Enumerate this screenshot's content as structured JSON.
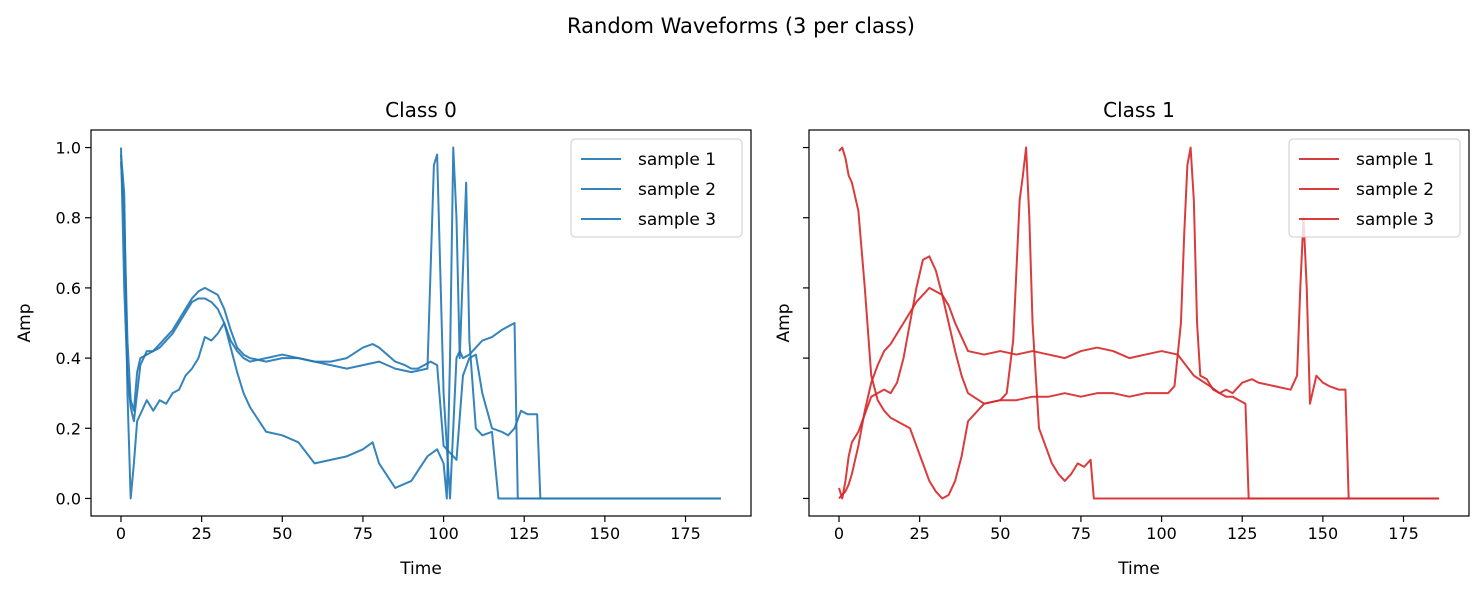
{
  "figure": {
    "suptitle": "Random Waveforms (3 per class)"
  },
  "chart_data": [
    {
      "type": "line",
      "title": "Class 0",
      "xlabel": "Time",
      "ylabel": "Amp",
      "xlim": [
        -9.3,
        195.3
      ],
      "ylim": [
        -0.05,
        1.05
      ],
      "xticks": [
        0,
        25,
        50,
        75,
        100,
        125,
        150,
        175
      ],
      "yticks": [
        0.0,
        0.2,
        0.4,
        0.6,
        0.8,
        1.0
      ],
      "ytick_labels": [
        "0.0",
        "0.2",
        "0.4",
        "0.6",
        "0.8",
        "1.0"
      ],
      "show_ytick_labels": true,
      "grid": false,
      "legend_position": "top-right",
      "color": "#1f77b4",
      "series": [
        {
          "name": "sample 1",
          "x": [
            0,
            1,
            2,
            3,
            4,
            5,
            6,
            8,
            10,
            12,
            14,
            16,
            18,
            20,
            22,
            24,
            26,
            28,
            30,
            32,
            34,
            36,
            38,
            40,
            45,
            50,
            55,
            60,
            65,
            70,
            75,
            80,
            85,
            90,
            95,
            97,
            98,
            100,
            102,
            103,
            104,
            105,
            106,
            108,
            110,
            112,
            115,
            118,
            120,
            122,
            123,
            124,
            186
          ],
          "y": [
            1.0,
            0.6,
            0.35,
            0.26,
            0.22,
            0.3,
            0.38,
            0.42,
            0.42,
            0.43,
            0.45,
            0.47,
            0.5,
            0.53,
            0.56,
            0.57,
            0.57,
            0.56,
            0.54,
            0.5,
            0.45,
            0.42,
            0.4,
            0.39,
            0.4,
            0.41,
            0.4,
            0.39,
            0.38,
            0.37,
            0.38,
            0.39,
            0.37,
            0.36,
            0.37,
            0.95,
            0.98,
            0.3,
            0.0,
            0.2,
            0.4,
            0.42,
            0.4,
            0.41,
            0.43,
            0.45,
            0.46,
            0.48,
            0.49,
            0.5,
            0.0,
            0.0,
            0.0
          ]
        },
        {
          "name": "sample 2",
          "x": [
            0,
            1,
            2,
            3,
            4,
            5,
            6,
            8,
            10,
            12,
            14,
            16,
            18,
            20,
            22,
            24,
            26,
            28,
            30,
            32,
            34,
            36,
            38,
            40,
            45,
            50,
            55,
            60,
            65,
            70,
            75,
            78,
            80,
            85,
            90,
            95,
            98,
            100,
            101,
            102,
            103,
            104,
            105,
            107,
            108,
            110,
            112,
            115,
            117,
            186
          ],
          "y": [
            0.98,
            0.87,
            0.3,
            0.0,
            0.1,
            0.22,
            0.24,
            0.28,
            0.25,
            0.28,
            0.27,
            0.3,
            0.31,
            0.35,
            0.37,
            0.4,
            0.46,
            0.45,
            0.47,
            0.5,
            0.43,
            0.36,
            0.3,
            0.26,
            0.19,
            0.18,
            0.16,
            0.1,
            0.11,
            0.12,
            0.14,
            0.16,
            0.1,
            0.03,
            0.05,
            0.12,
            0.14,
            0.1,
            0.0,
            0.4,
            1.0,
            0.8,
            0.4,
            0.9,
            0.45,
            0.2,
            0.18,
            0.19,
            0.0,
            0.0
          ]
        },
        {
          "name": "sample 3",
          "x": [
            0,
            1,
            2,
            3,
            4,
            5,
            6,
            8,
            10,
            12,
            14,
            16,
            18,
            20,
            22,
            24,
            26,
            28,
            30,
            32,
            34,
            36,
            38,
            40,
            45,
            50,
            55,
            60,
            65,
            70,
            75,
            78,
            80,
            85,
            88,
            90,
            92,
            94,
            96,
            98,
            100,
            102,
            104,
            106,
            108,
            110,
            112,
            115,
            118,
            120,
            122,
            124,
            126,
            129,
            130,
            186
          ],
          "y": [
            0.96,
            0.8,
            0.45,
            0.28,
            0.25,
            0.36,
            0.4,
            0.41,
            0.42,
            0.44,
            0.46,
            0.48,
            0.51,
            0.54,
            0.57,
            0.59,
            0.6,
            0.59,
            0.58,
            0.54,
            0.48,
            0.43,
            0.41,
            0.4,
            0.39,
            0.4,
            0.4,
            0.39,
            0.39,
            0.4,
            0.43,
            0.44,
            0.43,
            0.39,
            0.38,
            0.37,
            0.37,
            0.38,
            0.39,
            0.38,
            0.15,
            0.13,
            0.11,
            0.35,
            0.4,
            0.41,
            0.3,
            0.2,
            0.19,
            0.18,
            0.2,
            0.25,
            0.24,
            0.24,
            0.0,
            0.0
          ]
        }
      ]
    },
    {
      "type": "line",
      "title": "Class 1",
      "xlabel": "Time",
      "ylabel": "Amp",
      "xlim": [
        -9.3,
        195.3
      ],
      "ylim": [
        -0.05,
        1.05
      ],
      "xticks": [
        0,
        25,
        50,
        75,
        100,
        125,
        150,
        175
      ],
      "yticks": [
        0.0,
        0.2,
        0.4,
        0.6,
        0.8,
        1.0
      ],
      "ytick_labels": [
        "",
        "",
        "",
        "",
        "",
        ""
      ],
      "show_ytick_labels": false,
      "grid": false,
      "legend_position": "top-right",
      "color": "#d62728",
      "series": [
        {
          "name": "sample 1",
          "x": [
            0,
            1,
            2,
            3,
            4,
            6,
            8,
            10,
            12,
            14,
            16,
            18,
            20,
            22,
            24,
            26,
            28,
            30,
            32,
            34,
            36,
            38,
            40,
            45,
            50,
            52,
            54,
            56,
            57,
            58,
            59,
            60,
            62,
            64,
            66,
            68,
            70,
            72,
            74,
            76,
            78,
            79,
            80,
            186
          ],
          "y": [
            0.99,
            1.0,
            0.97,
            0.92,
            0.9,
            0.82,
            0.6,
            0.35,
            0.28,
            0.25,
            0.23,
            0.22,
            0.21,
            0.2,
            0.15,
            0.1,
            0.05,
            0.02,
            0.0,
            0.01,
            0.05,
            0.12,
            0.22,
            0.27,
            0.28,
            0.3,
            0.45,
            0.85,
            0.92,
            1.0,
            0.8,
            0.5,
            0.2,
            0.15,
            0.1,
            0.07,
            0.05,
            0.07,
            0.1,
            0.09,
            0.11,
            0.0,
            0.0,
            0.0
          ]
        },
        {
          "name": "sample 2",
          "x": [
            0,
            1,
            2,
            3,
            4,
            6,
            8,
            10,
            12,
            14,
            16,
            18,
            20,
            22,
            24,
            26,
            28,
            30,
            32,
            34,
            36,
            38,
            40,
            45,
            50,
            55,
            60,
            65,
            70,
            75,
            80,
            85,
            90,
            95,
            100,
            102,
            104,
            106,
            107,
            108,
            109,
            110,
            111,
            112,
            114,
            116,
            118,
            120,
            122,
            124,
            126,
            127,
            186
          ],
          "y": [
            0.03,
            0.0,
            0.05,
            0.12,
            0.16,
            0.19,
            0.24,
            0.29,
            0.3,
            0.31,
            0.3,
            0.33,
            0.4,
            0.5,
            0.6,
            0.68,
            0.69,
            0.65,
            0.58,
            0.5,
            0.42,
            0.35,
            0.3,
            0.27,
            0.28,
            0.28,
            0.29,
            0.29,
            0.3,
            0.29,
            0.3,
            0.3,
            0.29,
            0.3,
            0.3,
            0.3,
            0.32,
            0.5,
            0.75,
            0.95,
            1.0,
            0.85,
            0.5,
            0.35,
            0.34,
            0.31,
            0.3,
            0.29,
            0.29,
            0.28,
            0.27,
            0.0,
            0.0
          ]
        },
        {
          "name": "sample 3",
          "x": [
            0,
            1,
            2,
            3,
            4,
            6,
            8,
            10,
            12,
            14,
            16,
            18,
            20,
            22,
            24,
            26,
            28,
            30,
            32,
            34,
            36,
            38,
            40,
            45,
            50,
            55,
            60,
            65,
            70,
            75,
            80,
            85,
            90,
            95,
            100,
            105,
            110,
            115,
            118,
            120,
            122,
            125,
            128,
            130,
            135,
            140,
            142,
            143,
            144,
            145,
            146,
            148,
            150,
            152,
            155,
            157,
            158,
            186
          ],
          "y": [
            0.0,
            0.01,
            0.02,
            0.04,
            0.07,
            0.15,
            0.25,
            0.33,
            0.38,
            0.42,
            0.44,
            0.47,
            0.5,
            0.53,
            0.56,
            0.58,
            0.6,
            0.59,
            0.58,
            0.55,
            0.5,
            0.46,
            0.42,
            0.41,
            0.42,
            0.41,
            0.42,
            0.41,
            0.4,
            0.42,
            0.43,
            0.42,
            0.4,
            0.41,
            0.42,
            0.41,
            0.35,
            0.32,
            0.3,
            0.31,
            0.3,
            0.33,
            0.34,
            0.33,
            0.32,
            0.31,
            0.35,
            0.6,
            0.8,
            0.6,
            0.27,
            0.35,
            0.33,
            0.32,
            0.31,
            0.31,
            0.0,
            0.0
          ]
        }
      ]
    }
  ]
}
